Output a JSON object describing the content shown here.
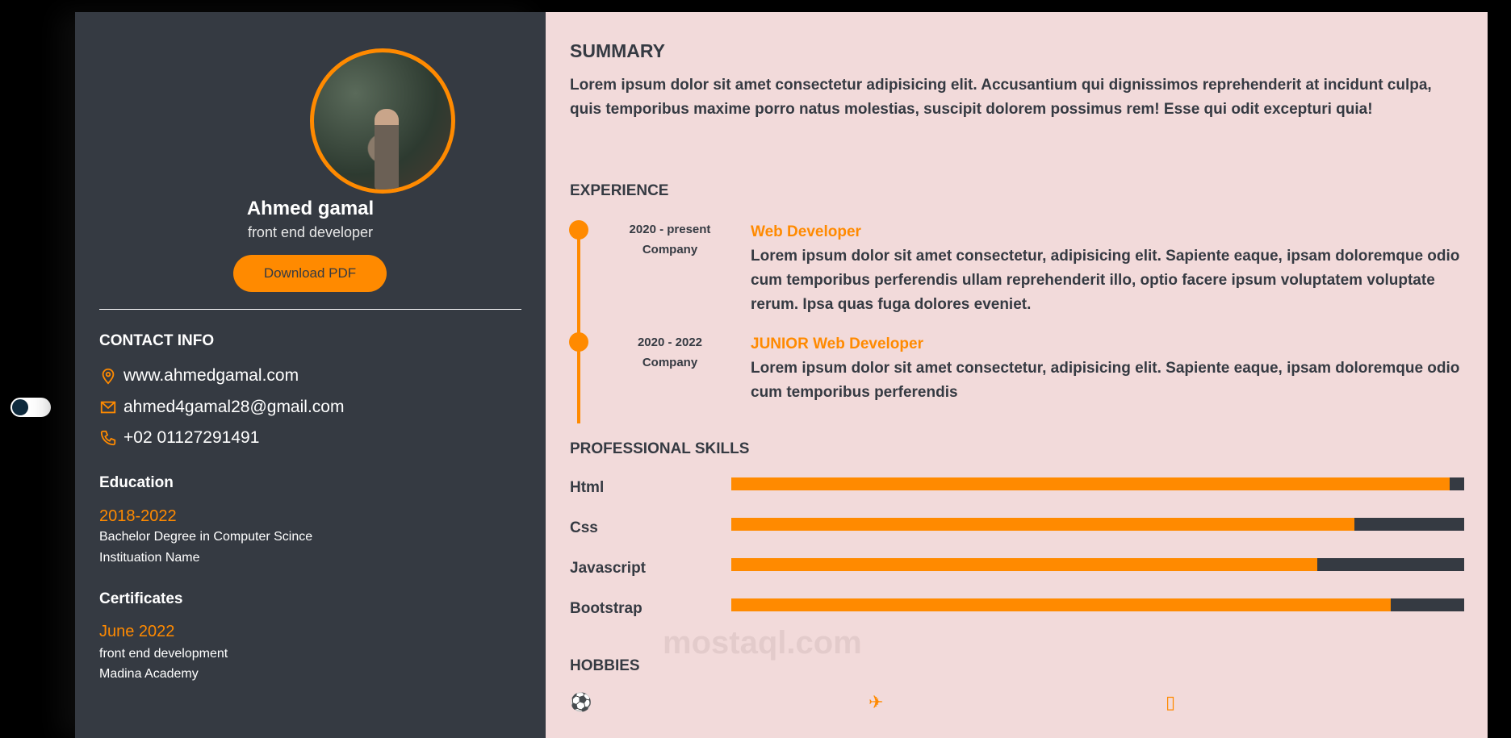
{
  "profile": {
    "name": "Ahmed gamal",
    "role": "front end developer",
    "download_label": "Download PDF"
  },
  "contact": {
    "heading": "CONTACT INFO",
    "items": [
      {
        "icon": "location-icon",
        "text": "www.ahmedgamal.com"
      },
      {
        "icon": "mail-icon",
        "text": "ahmed4gamal28@gmail.com"
      },
      {
        "icon": "phone-icon",
        "text": "+02 01127291491"
      }
    ]
  },
  "education": {
    "heading": "Education",
    "years": "2018-2022",
    "degree": "Bachelor Degree in Computer Scince",
    "institution": "Instituation Name"
  },
  "certificates": {
    "heading": "Certificates",
    "date": "June 2022",
    "title": "front end development",
    "issuer": "Madina Academy"
  },
  "summary": {
    "heading": "SUMMARY",
    "text": "Lorem ipsum dolor sit amet consectetur adipisicing elit. Accusantium qui dignissimos reprehenderit at incidunt culpa, quis temporibus maxime porro natus molestias, suscipit dolorem possimus rem! Esse qui odit excepturi quia!"
  },
  "experience": {
    "heading": "EXPERIENCE",
    "items": [
      {
        "dates": "2020 - present",
        "company": "Company",
        "title": "Web Developer",
        "desc": "Lorem ipsum dolor sit amet consectetur, adipisicing elit. Sapiente eaque, ipsam doloremque odio cum temporibus perferendis ullam reprehenderit illo, optio facere ipsum voluptatem voluptate rerum. Ipsa quas fuga dolores eveniet."
      },
      {
        "dates": "2020 - 2022",
        "company": "Company",
        "title": "JUNIOR Web Developer",
        "desc": "Lorem ipsum dolor sit amet consectetur, adipisicing elit. Sapiente eaque, ipsam doloremque odio cum temporibus perferendis"
      }
    ]
  },
  "skills": {
    "heading": "PROFESSIONAL SKILLS",
    "items": [
      {
        "name": "Html",
        "level": 0.98
      },
      {
        "name": "Css",
        "level": 0.85
      },
      {
        "name": "Javascript",
        "level": 0.8
      },
      {
        "name": "Bootstrap",
        "level": 0.9
      }
    ]
  },
  "hobbies": {
    "heading": "HOBBIES",
    "icons": [
      "football-icon",
      "plane-icon",
      "book-icon"
    ]
  },
  "watermark": "mostaql.com",
  "colors": {
    "accent": "#ff8a00",
    "sidebar": "#353a42",
    "main_bg": "#f2dada"
  }
}
